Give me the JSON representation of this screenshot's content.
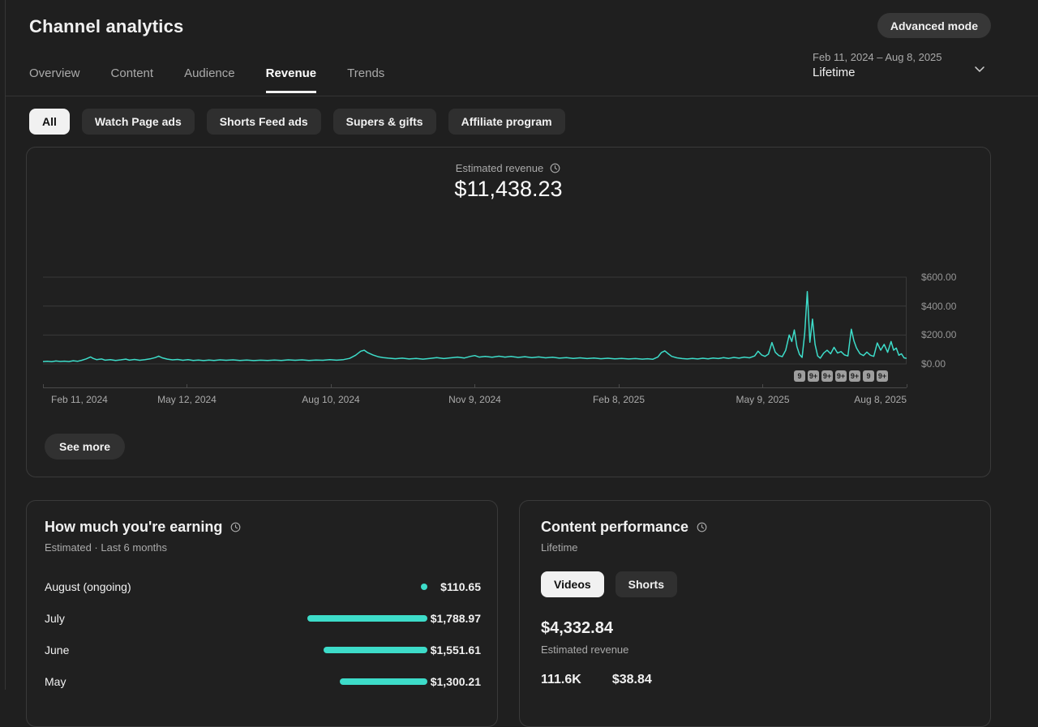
{
  "page": {
    "title": "Channel analytics"
  },
  "header": {
    "advanced_mode_label": "Advanced mode",
    "date_range": "Feb 11, 2024 – Aug 8, 2025",
    "period": "Lifetime"
  },
  "tabs": {
    "items": [
      {
        "label": "Overview",
        "active": false
      },
      {
        "label": "Content",
        "active": false
      },
      {
        "label": "Audience",
        "active": false
      },
      {
        "label": "Revenue",
        "active": true
      },
      {
        "label": "Trends",
        "active": false
      }
    ]
  },
  "filters": {
    "items": [
      {
        "label": "All",
        "selected": true
      },
      {
        "label": "Watch Page ads",
        "selected": false
      },
      {
        "label": "Shorts Feed ads",
        "selected": false
      },
      {
        "label": "Supers & gifts",
        "selected": false
      },
      {
        "label": "Affiliate program",
        "selected": false
      }
    ]
  },
  "revenue_card": {
    "metric_label": "Estimated revenue",
    "metric_value": "$11,438.23",
    "see_more_label": "See more",
    "badges": [
      "9",
      "9+",
      "9+",
      "9+",
      "9+",
      "9",
      "9+"
    ]
  },
  "chart_data": {
    "type": "line",
    "title": "Estimated revenue",
    "unit": "USD per day",
    "line_color": "#3ddcc9",
    "grid_color": "#393939",
    "ylim": [
      0,
      600
    ],
    "legend": "none",
    "y_ticks": [
      {
        "label": "$600.00",
        "value": 600
      },
      {
        "label": "$400.00",
        "value": 400
      },
      {
        "label": "$200.00",
        "value": 200
      },
      {
        "label": "$0.00",
        "value": 0
      }
    ],
    "x_ticks": [
      "Feb 11, 2024",
      "May 12, 2024",
      "Aug 10, 2024",
      "Nov 9, 2024",
      "Feb 8, 2025",
      "May 9, 2025",
      "Aug 8, 2025"
    ],
    "points": [
      [
        0,
        16
      ],
      [
        0.005,
        18
      ],
      [
        0.01,
        15
      ],
      [
        0.015,
        20
      ],
      [
        0.02,
        17
      ],
      [
        0.025,
        19
      ],
      [
        0.03,
        16
      ],
      [
        0.035,
        22
      ],
      [
        0.04,
        18
      ],
      [
        0.045,
        25
      ],
      [
        0.05,
        35
      ],
      [
        0.055,
        48
      ],
      [
        0.058,
        38
      ],
      [
        0.062,
        30
      ],
      [
        0.068,
        34
      ],
      [
        0.072,
        26
      ],
      [
        0.078,
        30
      ],
      [
        0.084,
        24
      ],
      [
        0.09,
        28
      ],
      [
        0.096,
        33
      ],
      [
        0.1,
        26
      ],
      [
        0.106,
        31
      ],
      [
        0.112,
        25
      ],
      [
        0.118,
        29
      ],
      [
        0.124,
        35
      ],
      [
        0.13,
        44
      ],
      [
        0.134,
        54
      ],
      [
        0.138,
        42
      ],
      [
        0.144,
        33
      ],
      [
        0.15,
        28
      ],
      [
        0.156,
        31
      ],
      [
        0.162,
        25
      ],
      [
        0.168,
        29
      ],
      [
        0.174,
        24
      ],
      [
        0.18,
        27
      ],
      [
        0.186,
        23
      ],
      [
        0.192,
        27
      ],
      [
        0.198,
        24
      ],
      [
        0.205,
        28
      ],
      [
        0.212,
        25
      ],
      [
        0.22,
        28
      ],
      [
        0.228,
        24
      ],
      [
        0.236,
        27
      ],
      [
        0.244,
        23
      ],
      [
        0.252,
        26
      ],
      [
        0.26,
        24
      ],
      [
        0.268,
        27
      ],
      [
        0.276,
        24
      ],
      [
        0.284,
        28
      ],
      [
        0.292,
        25
      ],
      [
        0.3,
        28
      ],
      [
        0.308,
        24
      ],
      [
        0.316,
        27
      ],
      [
        0.324,
        25
      ],
      [
        0.332,
        29
      ],
      [
        0.34,
        26
      ],
      [
        0.348,
        30
      ],
      [
        0.355,
        38
      ],
      [
        0.362,
        60
      ],
      [
        0.368,
        88
      ],
      [
        0.372,
        95
      ],
      [
        0.376,
        78
      ],
      [
        0.382,
        62
      ],
      [
        0.388,
        50
      ],
      [
        0.394,
        44
      ],
      [
        0.4,
        40
      ],
      [
        0.408,
        36
      ],
      [
        0.416,
        40
      ],
      [
        0.424,
        34
      ],
      [
        0.432,
        38
      ],
      [
        0.44,
        33
      ],
      [
        0.448,
        38
      ],
      [
        0.456,
        43
      ],
      [
        0.464,
        37
      ],
      [
        0.472,
        42
      ],
      [
        0.48,
        47
      ],
      [
        0.488,
        41
      ],
      [
        0.495,
        52
      ],
      [
        0.5,
        58
      ],
      [
        0.505,
        47
      ],
      [
        0.512,
        52
      ],
      [
        0.52,
        46
      ],
      [
        0.528,
        53
      ],
      [
        0.535,
        47
      ],
      [
        0.542,
        52
      ],
      [
        0.55,
        45
      ],
      [
        0.558,
        50
      ],
      [
        0.566,
        43
      ],
      [
        0.574,
        48
      ],
      [
        0.582,
        42
      ],
      [
        0.59,
        46
      ],
      [
        0.598,
        40
      ],
      [
        0.606,
        44
      ],
      [
        0.614,
        38
      ],
      [
        0.622,
        42
      ],
      [
        0.63,
        37
      ],
      [
        0.638,
        41
      ],
      [
        0.646,
        36
      ],
      [
        0.654,
        39
      ],
      [
        0.662,
        35
      ],
      [
        0.67,
        38
      ],
      [
        0.678,
        34
      ],
      [
        0.686,
        37
      ],
      [
        0.694,
        33
      ],
      [
        0.7,
        36
      ],
      [
        0.706,
        32
      ],
      [
        0.712,
        48
      ],
      [
        0.716,
        78
      ],
      [
        0.72,
        90
      ],
      [
        0.724,
        70
      ],
      [
        0.728,
        52
      ],
      [
        0.734,
        42
      ],
      [
        0.74,
        37
      ],
      [
        0.746,
        34
      ],
      [
        0.752,
        38
      ],
      [
        0.758,
        34
      ],
      [
        0.764,
        39
      ],
      [
        0.77,
        35
      ],
      [
        0.776,
        41
      ],
      [
        0.782,
        37
      ],
      [
        0.788,
        43
      ],
      [
        0.794,
        38
      ],
      [
        0.8,
        45
      ],
      [
        0.806,
        40
      ],
      [
        0.812,
        47
      ],
      [
        0.818,
        42
      ],
      [
        0.824,
        55
      ],
      [
        0.828,
        88
      ],
      [
        0.832,
        62
      ],
      [
        0.836,
        52
      ],
      [
        0.84,
        68
      ],
      [
        0.844,
        148
      ],
      [
        0.848,
        80
      ],
      [
        0.852,
        58
      ],
      [
        0.856,
        50
      ],
      [
        0.86,
        95
      ],
      [
        0.864,
        200
      ],
      [
        0.867,
        155
      ],
      [
        0.87,
        235
      ],
      [
        0.873,
        120
      ],
      [
        0.876,
        65
      ],
      [
        0.879,
        45
      ],
      [
        0.882,
        210
      ],
      [
        0.885,
        500
      ],
      [
        0.888,
        150
      ],
      [
        0.891,
        310
      ],
      [
        0.894,
        135
      ],
      [
        0.897,
        55
      ],
      [
        0.9,
        40
      ],
      [
        0.904,
        75
      ],
      [
        0.908,
        95
      ],
      [
        0.912,
        70
      ],
      [
        0.916,
        115
      ],
      [
        0.92,
        75
      ],
      [
        0.924,
        85
      ],
      [
        0.928,
        62
      ],
      [
        0.932,
        55
      ],
      [
        0.936,
        240
      ],
      [
        0.939,
        160
      ],
      [
        0.942,
        110
      ],
      [
        0.946,
        70
      ],
      [
        0.95,
        58
      ],
      [
        0.954,
        82
      ],
      [
        0.958,
        60
      ],
      [
        0.962,
        52
      ],
      [
        0.966,
        145
      ],
      [
        0.97,
        95
      ],
      [
        0.974,
        135
      ],
      [
        0.978,
        80
      ],
      [
        0.982,
        155
      ],
      [
        0.985,
        95
      ],
      [
        0.988,
        110
      ],
      [
        0.991,
        60
      ],
      [
        0.994,
        70
      ],
      [
        0.997,
        42
      ],
      [
        1,
        38
      ]
    ]
  },
  "earnings_card": {
    "title": "How much you're earning",
    "subtitle": "Estimated · Last 6 months",
    "max_amount": 1788.97,
    "rows": [
      {
        "label": "August (ongoing)",
        "value": "$110.65",
        "amount": 110.65,
        "style": "dot"
      },
      {
        "label": "July",
        "value": "$1,788.97",
        "amount": 1788.97,
        "style": "bar"
      },
      {
        "label": "June",
        "value": "$1,551.61",
        "amount": 1551.61,
        "style": "bar"
      },
      {
        "label": "May",
        "value": "$1,300.21",
        "amount": 1300.21,
        "style": "bar"
      }
    ]
  },
  "performance_card": {
    "title": "Content performance",
    "subtitle": "Lifetime",
    "toggles": [
      {
        "label": "Videos",
        "selected": true
      },
      {
        "label": "Shorts",
        "selected": false
      }
    ],
    "primary_value": "$4,332.84",
    "primary_label": "Estimated revenue",
    "secondary_values": [
      "111.6K",
      "$38.84"
    ]
  },
  "colors": {
    "accent_teal": "#3ddcc9",
    "page_bg": "#1f1f1f",
    "selected_chip_bg": "#f1f1f1",
    "badge_bg": "#9e9e9e"
  }
}
